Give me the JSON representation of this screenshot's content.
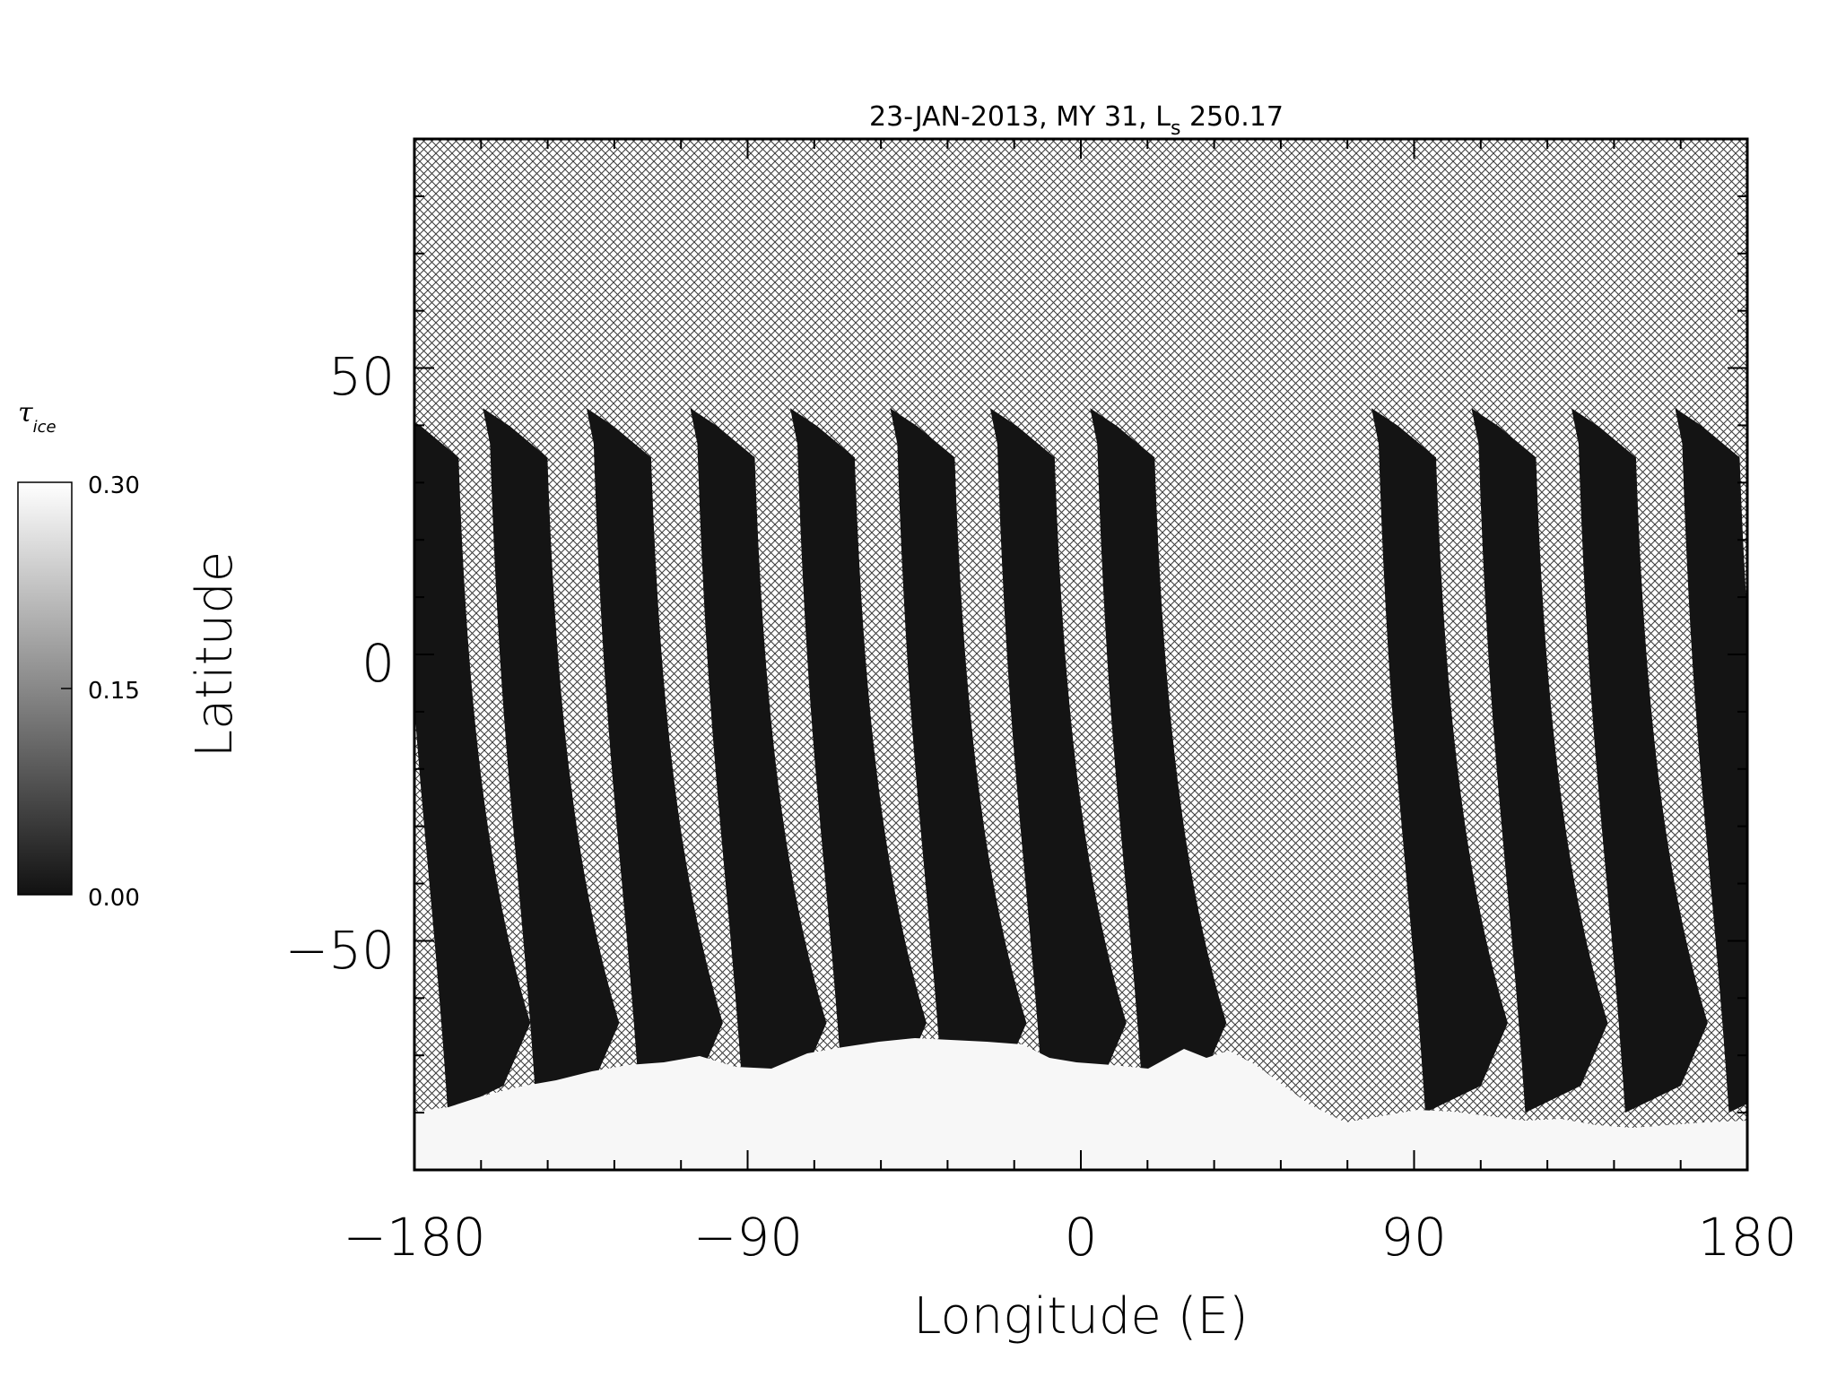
{
  "title": {
    "prefix": "23-JAN-2013, MY 31,  L",
    "sub": "s",
    "suffix": " 250.17"
  },
  "x_axis": {
    "label": "Longitude (E)",
    "range": [
      -180,
      180
    ],
    "ticks": [
      "-180",
      "-90",
      "0",
      "90",
      "180"
    ]
  },
  "y_axis": {
    "label": "Latitude",
    "range": [
      -90,
      90
    ],
    "ticks": [
      "50",
      "0",
      "-50"
    ]
  },
  "colorbar": {
    "symbol": "τ",
    "subscript": "ice",
    "labels": [
      "0.30",
      "0.15",
      "0.00"
    ],
    "range": [
      0.0,
      0.3
    ],
    "colors": [
      "#ffffff",
      "#111111"
    ]
  },
  "chart_data": {
    "type": "heatmap",
    "title": "23-JAN-2013, MY 31,  Ls 250.17",
    "xlabel": "Longitude (E)",
    "ylabel": "Latitude",
    "xlim": [
      -180,
      180
    ],
    "ylim": [
      -90,
      90
    ],
    "no_data_pattern": "crosshatch",
    "swath_color": "#141414",
    "polar_cap_color": "#f7f7f7",
    "swath_center_longitudes": [
      -178,
      -154,
      -126,
      -98,
      -71,
      -44,
      -17,
      10,
      86,
      113,
      140,
      168
    ],
    "swath_top_latitude": 43,
    "swath_bottom_latitude": -80,
    "south_polar_cap_edge_latitude": -70
  }
}
